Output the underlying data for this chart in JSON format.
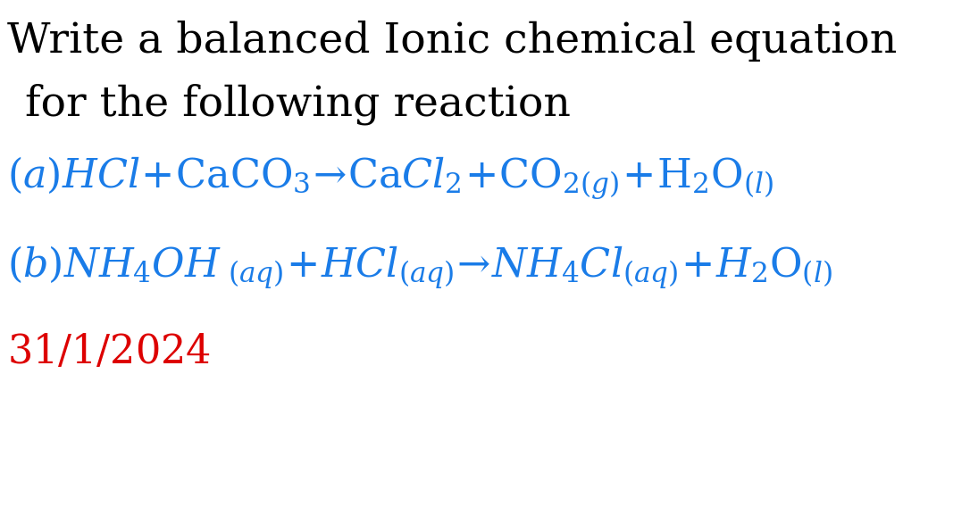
{
  "bg_color": "#ffffff",
  "title_line1": "Write a balanced Ionic chemical equation",
  "title_line2": " for the following reaction",
  "title_color": "#000000",
  "title_fontsize": 34,
  "blue_color": "#1a7ce8",
  "red_color": "#dd0000",
  "eq_fontsize": 32,
  "date_fontsize": 32,
  "figsize": [
    10.86,
    5.68
  ],
  "dpi": 100
}
